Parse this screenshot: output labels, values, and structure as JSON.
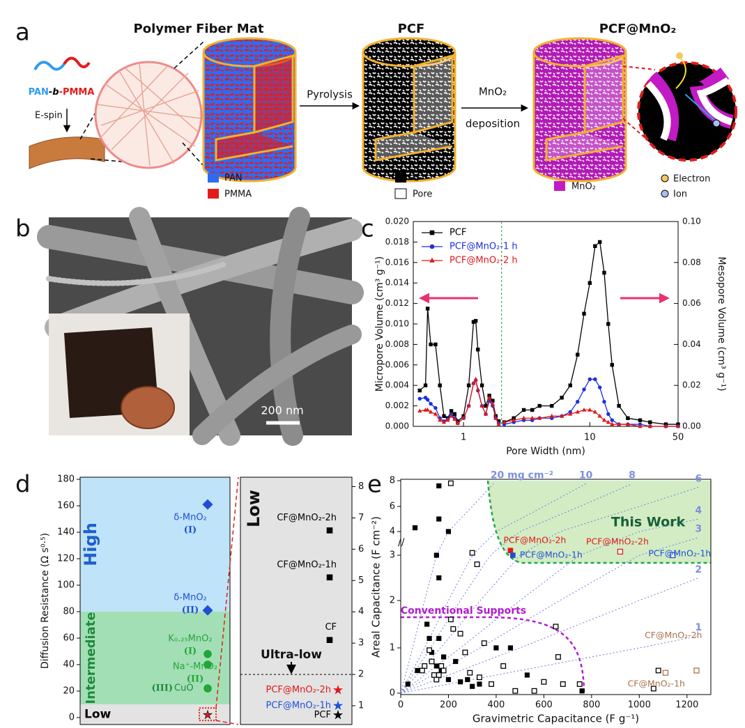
{
  "figure": {
    "a": {
      "label": "a",
      "titles": [
        "Polymer Fiber Mat",
        "PCF",
        "PCF@MnO₂"
      ],
      "polymer": "PAN-b-PMMA",
      "espin": "E-spin",
      "step1": "Pyrolysis",
      "step2_top": "MnO₂",
      "step2_bottom": "deposition",
      "legend": [
        "PAN",
        "PMMA",
        "C",
        "Pore",
        "MnO₂",
        "Electron",
        "Ion"
      ]
    },
    "b": {
      "label": "b",
      "scale_bar": "200 nm"
    },
    "c": {
      "label": "c"
    },
    "d": {
      "label": "d"
    },
    "e": {
      "label": "e"
    }
  },
  "chart_data": [
    {
      "type": "line",
      "xlabel": "Pore Width (nm)",
      "ylabel": "Micropore Volume (cm³ g⁻¹)",
      "y2label": "Mesopore Volume (cm³ g⁻¹)",
      "xscale": "log",
      "xlim": [
        0.4,
        50
      ],
      "xticks": [
        1,
        10,
        50
      ],
      "ylim": [
        0,
        0.02
      ],
      "yticks": [
        {
          "value": 0,
          "label": "0.000"
        },
        {
          "value": 0.002,
          "label": "0.002"
        },
        {
          "value": 0.004,
          "label": "0.004"
        },
        {
          "value": 0.006,
          "label": "0.006"
        },
        {
          "value": 0.008,
          "label": "0.008"
        },
        {
          "value": 0.01,
          "label": "0.010"
        },
        {
          "value": 0.012,
          "label": "0.012"
        },
        {
          "value": 0.014,
          "label": "0.014"
        },
        {
          "value": 0.016,
          "label": "0.016"
        },
        {
          "value": 0.018,
          "label": "0.018"
        },
        {
          "value": 0.02,
          "label": "0.020"
        }
      ],
      "y2lim": [
        0,
        0.1
      ],
      "y2ticks": [
        {
          "value": 0,
          "label": "0.00"
        },
        {
          "value": 0.02,
          "label": "0.02"
        },
        {
          "value": 0.04,
          "label": "0.04"
        },
        {
          "value": 0.06,
          "label": "0.06"
        },
        {
          "value": 0.08,
          "label": "0.08"
        },
        {
          "value": 0.1,
          "label": "0.10"
        }
      ],
      "divider": 2,
      "series": [
        {
          "name": "PCF",
          "color": "#000000",
          "marker": "square",
          "x": [
            0.45,
            0.5,
            0.52,
            0.55,
            0.6,
            0.65,
            0.7,
            0.75,
            0.8,
            0.85,
            0.9,
            1.0,
            1.1,
            1.2,
            1.25,
            1.3,
            1.4,
            1.5,
            1.6,
            1.7,
            1.8,
            1.9
          ],
          "values": [
            0.0035,
            0.004,
            0.0115,
            0.008,
            0.008,
            0.004,
            0.001,
            0.0008,
            0.0015,
            0.0012,
            0.0005,
            0.001,
            0.004,
            0.0102,
            0.0103,
            0.0075,
            0.004,
            0.002,
            0.003,
            0.0025,
            0.001,
            0.0005
          ]
        },
        {
          "name": "PCF@MnO₂-1 h",
          "color": "#1a2ee0",
          "marker": "circle",
          "x": [
            0.45,
            0.5,
            0.52,
            0.55,
            0.6,
            0.65,
            0.7,
            0.75,
            0.8,
            0.85,
            0.9,
            1.0,
            1.1,
            1.2,
            1.25,
            1.3,
            1.4,
            1.5,
            1.6,
            1.7,
            1.8,
            1.9
          ],
          "values": [
            0.0027,
            0.0028,
            0.0026,
            0.0022,
            0.0018,
            0.0008,
            0.0005,
            0.0007,
            0.0012,
            0.0008,
            0.0003,
            0.0008,
            0.002,
            0.0042,
            0.0045,
            0.0035,
            0.002,
            0.0012,
            0.0025,
            0.002,
            0.0008,
            0.0003
          ]
        },
        {
          "name": "PCF@MnO₂-2 h",
          "color": "#e01818",
          "marker": "triangle",
          "x": [
            0.45,
            0.5,
            0.52,
            0.55,
            0.6,
            0.65,
            0.7,
            0.75,
            0.8,
            0.85,
            0.9,
            1.0,
            1.1,
            1.2,
            1.25,
            1.3,
            1.4,
            1.5,
            1.6,
            1.7,
            1.8,
            1.9
          ],
          "values": [
            0.0015,
            0.0016,
            0.0016,
            0.0014,
            0.0012,
            0.0006,
            0.0004,
            0.0006,
            0.001,
            0.0007,
            0.0003,
            0.0008,
            0.002,
            0.0042,
            0.0046,
            0.0036,
            0.002,
            0.0012,
            0.0028,
            0.0022,
            0.0008,
            0.0002
          ]
        },
        {
          "axis": "y2",
          "color": "#000000",
          "marker": "square",
          "x": [
            2.1,
            2.5,
            3,
            3.5,
            4,
            5,
            6,
            7,
            8,
            9,
            10,
            11,
            12,
            13,
            14,
            15,
            17,
            20,
            25,
            30,
            40,
            50
          ],
          "values": [
            0.002,
            0.004,
            0.008,
            0.008,
            0.01,
            0.01,
            0.014,
            0.02,
            0.035,
            0.055,
            0.07,
            0.088,
            0.09,
            0.075,
            0.05,
            0.03,
            0.01,
            0.004,
            0.003,
            0.002,
            0.001,
            0.001
          ]
        },
        {
          "axis": "y2",
          "color": "#1a2ee0",
          "marker": "circle",
          "x": [
            2.1,
            2.5,
            3,
            3.5,
            4,
            5,
            6,
            7,
            8,
            9,
            10,
            11,
            12,
            13,
            14,
            15,
            17,
            20,
            25,
            30,
            40,
            50
          ],
          "values": [
            0.001,
            0.002,
            0.003,
            0.003,
            0.004,
            0.004,
            0.005,
            0.007,
            0.012,
            0.018,
            0.023,
            0.023,
            0.019,
            0.012,
            0.006,
            0.003,
            0.001,
            0.001,
            0.001,
            0,
            0,
            0
          ]
        },
        {
          "axis": "y2",
          "color": "#e01818",
          "marker": "triangle",
          "x": [
            2.1,
            2.5,
            3,
            3.5,
            4,
            5,
            6,
            7,
            8,
            9,
            10,
            11,
            12,
            13,
            14,
            15,
            17,
            20,
            25,
            30,
            40,
            50
          ],
          "values": [
            0.002,
            0.003,
            0.004,
            0.004,
            0.004,
            0.005,
            0.005,
            0.006,
            0.007,
            0.008,
            0.008,
            0.007,
            0.005,
            0.003,
            0.002,
            0.001,
            0.001,
            0.001,
            0,
            0,
            0,
            0
          ]
        }
      ]
    },
    {
      "type": "scatter",
      "ylabel": "Diffusion Resistance (Ω s⁰·⁵)",
      "ylim": [
        0,
        180
      ],
      "yticks": [
        0,
        20,
        40,
        60,
        80,
        100,
        120,
        140,
        160,
        180
      ],
      "regions": [
        {
          "label": "High",
          "from": 80,
          "to": 180,
          "color": "#bfe3f8",
          "text_color": "#1f5fd0"
        },
        {
          "label": "Intermediate",
          "from": 10,
          "to": 80,
          "color": "#a3dfb5",
          "text_color": "#1f8a3c"
        },
        {
          "label": "Low",
          "from": 0,
          "to": 10,
          "color": "#e3e3e3",
          "text_color": "#000000"
        }
      ],
      "points": [
        {
          "label": "δ-MnO₂",
          "tag": "(I)",
          "value": 161,
          "color": "#1f4fd6",
          "marker": "diamond"
        },
        {
          "label": "δ-MnO₂",
          "tag": "(II)",
          "value": 81,
          "color": "#1f4fd6",
          "marker": "diamond"
        },
        {
          "label": "K₀.₂₅MnO₂",
          "tag": "(I)",
          "value": 48,
          "color": "#22a53a",
          "marker": "circle"
        },
        {
          "label": "Na⁺-MnO₂",
          "tag": "(II)",
          "value": 40,
          "color": "#22a53a",
          "marker": "circle"
        },
        {
          "label": "CuO",
          "tag": "(III)",
          "value": 22,
          "color": "#22a53a",
          "marker": "circle"
        }
      ],
      "highlight": 2,
      "zoom": {
        "label": "Low",
        "ylim": [
          0.4,
          8.3
        ],
        "yticks": [
          1,
          2,
          3,
          4,
          5,
          6,
          7,
          8
        ],
        "threshold": 2,
        "threshold_label": "Ultra-low",
        "points": [
          {
            "label": "CF@MnO₂-2h",
            "value": 6.6,
            "color": "#000000",
            "marker": "square"
          },
          {
            "label": "CF@MnO₂-1h",
            "value": 5.1,
            "color": "#000000",
            "marker": "square"
          },
          {
            "label": "CF",
            "value": 3.1,
            "color": "#000000",
            "marker": "square"
          },
          {
            "label": "PCF@MnO₂-2h",
            "value": 1.5,
            "color": "#e01818",
            "marker": "star"
          },
          {
            "label": "PCF@MnO₂-1h",
            "value": 1.0,
            "color": "#1f4fd6",
            "marker": "star"
          },
          {
            "label": "PCF",
            "value": 0.7,
            "color": "#000000",
            "marker": "star"
          }
        ]
      }
    },
    {
      "type": "scatter",
      "xlabel": "Gravimetric Capacitance (F g⁻¹)",
      "ylabel": "Areal Capacitance (F cm⁻²)",
      "xlim": [
        0,
        1300
      ],
      "xticks": [
        0,
        200,
        400,
        600,
        800,
        1000,
        1200
      ],
      "ylim": [
        0,
        8
      ],
      "yticks": [
        0,
        1,
        2,
        3,
        4,
        6,
        8
      ],
      "loadings": [
        {
          "value": 20,
          "label": "20 mg cm⁻²"
        },
        10,
        8,
        6,
        4,
        3,
        2,
        1
      ],
      "region_label": "This Work",
      "conventional_label": "Conventional Supports",
      "series": [
        {
          "color": "#000000",
          "open": false,
          "x": [
            30,
            70,
            60,
            160,
            160,
            150,
            160,
            200,
            110,
            120,
            160,
            130,
            150,
            170,
            180,
            200,
            230,
            250,
            280,
            300,
            330,
            400,
            460,
            530,
            760
          ],
          "values": [
            0.2,
            0.5,
            4.3,
            7.6,
            5,
            3,
            2.5,
            4,
            1.5,
            1.2,
            1.2,
            0.9,
            0.6,
            0.5,
            0.8,
            0.3,
            0.7,
            0.25,
            0.3,
            0.15,
            0.2,
            1,
            1,
            0.4,
            0.05
          ]
        },
        {
          "color": "#000000",
          "open": true,
          "x": [
            210,
            90,
            100,
            120,
            130,
            140,
            150,
            160,
            170,
            180,
            210,
            220,
            250,
            270,
            290,
            300,
            320,
            330,
            350,
            380,
            430,
            480,
            560,
            600,
            650,
            660,
            680,
            750,
            1060,
            1080
          ],
          "values": [
            7.8,
            0.5,
            0.6,
            0.95,
            0.7,
            0.4,
            0.3,
            0.4,
            0.6,
            0.5,
            1.6,
            1.4,
            1.3,
            0.9,
            0.45,
            3.1,
            2.8,
            0.35,
            1.1,
            0.2,
            0.6,
            0.05,
            0.05,
            0.25,
            1.45,
            0.8,
            0.2,
            0.2,
            0.1,
            0.5
          ]
        }
      ],
      "labeled": [
        {
          "label": "PCF@MnO₂-2h",
          "x": 460,
          "value": 3.2,
          "color": "#e01818",
          "open": false
        },
        {
          "label": "PCF@MnO₂-1h",
          "x": 470,
          "value": 3.0,
          "color": "#1f4fd6",
          "open": false
        },
        {
          "label": "PCF@MnO₂-2h",
          "x": 920,
          "value": 3.15,
          "color": "#e01818",
          "open": true
        },
        {
          "label": "PCF@MnO₂-1h",
          "x": 1140,
          "value": 3.0,
          "color": "#1f4fd6",
          "open": true
        },
        {
          "label": "CF@MnO₂-2h",
          "x": 1240,
          "value": 0.5,
          "color": "#a8724e",
          "open": true
        },
        {
          "label": "CF@MnO₂-1h",
          "x": 1110,
          "value": 0.45,
          "color": "#a8724e",
          "open": true
        }
      ]
    }
  ]
}
